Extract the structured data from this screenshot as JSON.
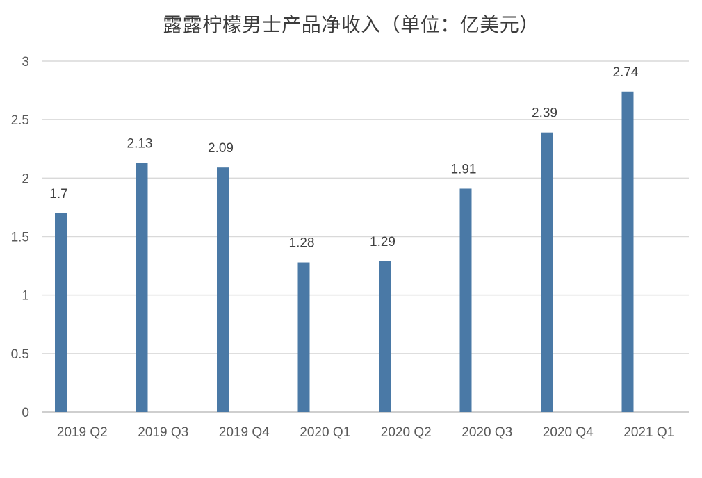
{
  "chart_data": {
    "type": "bar",
    "title": "露露柠檬男士产品净收入（单位：亿美元）",
    "categories": [
      "2019 Q2",
      "2019 Q3",
      "2019 Q4",
      "2020 Q1",
      "2020 Q2",
      "2020 Q3",
      "2020 Q4",
      "2021 Q1"
    ],
    "series": [
      {
        "values": [
          1.7,
          2.13,
          2.09,
          1.28,
          1.29,
          1.91,
          2.39,
          2.74
        ],
        "color": "#4a79a6"
      }
    ],
    "data_labels": [
      "1.7",
      "2.13",
      "2.09",
      "1.28",
      "1.29",
      "1.91",
      "2.39",
      "2.74"
    ],
    "ylim": [
      0,
      3
    ],
    "yticks": [
      0,
      0.5,
      1,
      1.5,
      2,
      2.5,
      3
    ],
    "ytick_labels": [
      "0",
      "0.5",
      "1",
      "1.5",
      "2",
      "2.5",
      "3"
    ],
    "grid": true,
    "legend": "none",
    "xlabel": "",
    "ylabel": ""
  }
}
